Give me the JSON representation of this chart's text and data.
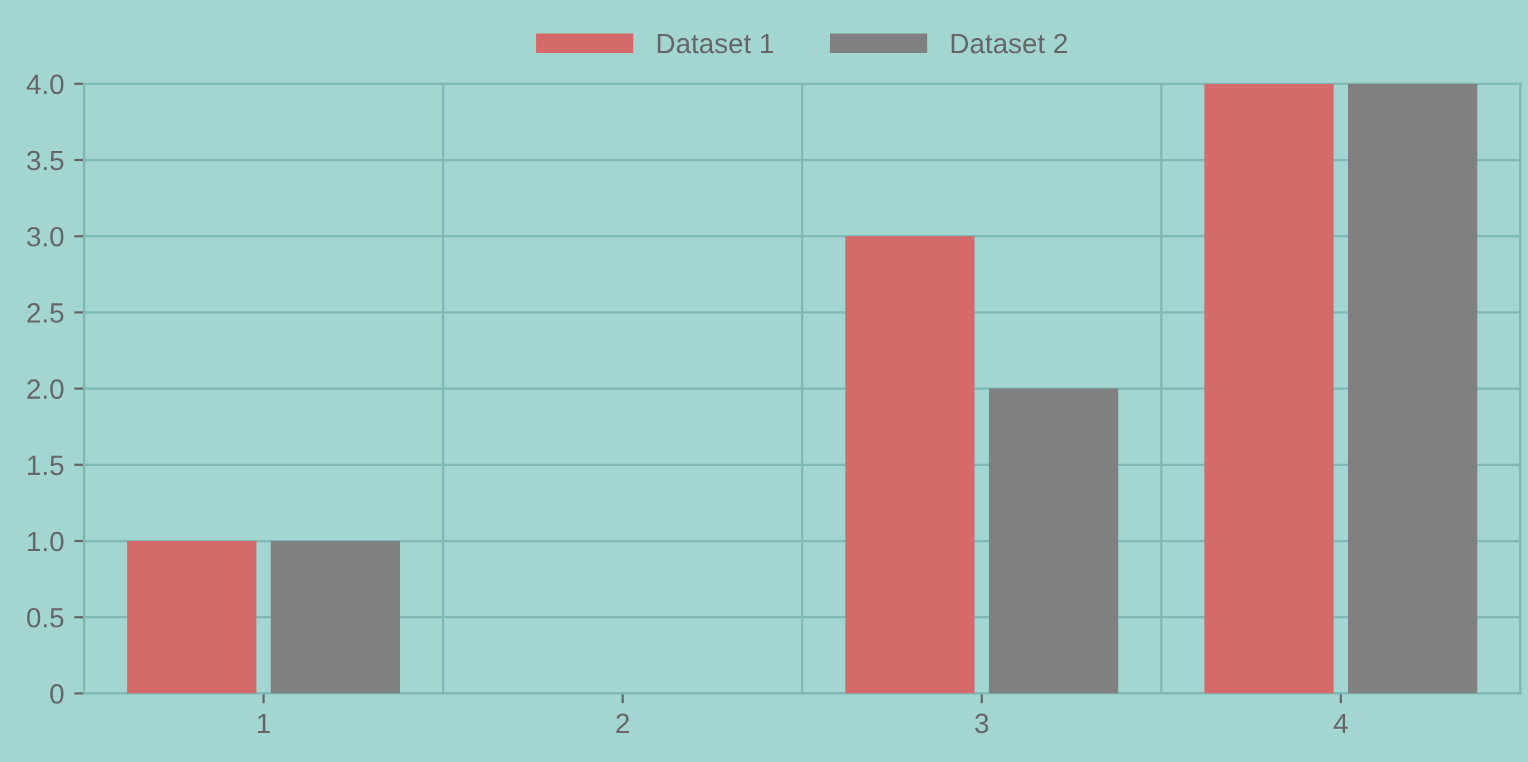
{
  "chart_data": {
    "type": "bar",
    "categories": [
      "1",
      "2",
      "3",
      "4"
    ],
    "series": [
      {
        "name": "Dataset 1",
        "color": "#d46a6a",
        "values": [
          1,
          null,
          3,
          4
        ]
      },
      {
        "name": "Dataset 2",
        "color": "#808080",
        "values": [
          1,
          null,
          2,
          4
        ]
      }
    ],
    "ylim": [
      0,
      4
    ],
    "yticks": [
      0,
      {
        "value": 0.5,
        "label": "0.5"
      },
      {
        "value": 1,
        "label": "1.0"
      },
      {
        "value": 1.5,
        "label": "1.5"
      },
      {
        "value": 2,
        "label": "2.0"
      },
      {
        "value": 2.5,
        "label": "2.5"
      },
      {
        "value": 3,
        "label": "3.0"
      },
      {
        "value": 3.5,
        "label": "3.5"
      },
      {
        "value": 4,
        "label": "4.0"
      }
    ],
    "grid": true,
    "legend": "top"
  }
}
